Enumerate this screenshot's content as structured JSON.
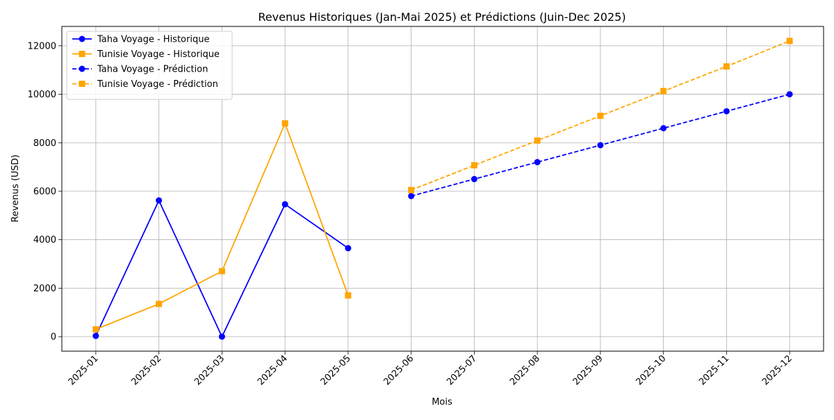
{
  "chart_data": {
    "type": "line",
    "title": "Revenus Historiques (Jan-Mai 2025) et Prédictions (Juin-Dec 2025)",
    "xlabel": "Mois",
    "ylabel": "Revenus (USD)",
    "categories": [
      "2025-01",
      "2025-02",
      "2025-03",
      "2025-04",
      "2025-05",
      "2025-06",
      "2025-07",
      "2025-08",
      "2025-09",
      "2025-10",
      "2025-11",
      "2025-12"
    ],
    "ylim": [
      -600,
      12800
    ],
    "yticks": [
      0,
      2000,
      4000,
      6000,
      8000,
      10000,
      12000
    ],
    "ytick_labels": [
      "0",
      "2000",
      "4000",
      "6000",
      "8000",
      "10000",
      "12000"
    ],
    "grid": true,
    "legend_position": "top-left",
    "series": [
      {
        "name": "Taha Voyage - Historique",
        "color": "#0000ff",
        "marker": "circle",
        "dash": "solid",
        "x": [
          "2025-01",
          "2025-02",
          "2025-03",
          "2025-04",
          "2025-05"
        ],
        "values": [
          30,
          5620,
          0,
          5460,
          3650
        ]
      },
      {
        "name": "Tunisie Voyage - Historique",
        "color": "#ffa500",
        "marker": "square",
        "dash": "solid",
        "x": [
          "2025-01",
          "2025-02",
          "2025-03",
          "2025-04",
          "2025-05"
        ],
        "values": [
          300,
          1350,
          2700,
          8800,
          1700
        ]
      },
      {
        "name": "Taha Voyage - Prédiction",
        "color": "#0000ff",
        "marker": "circle",
        "dash": "dashed",
        "x": [
          "2025-06",
          "2025-07",
          "2025-08",
          "2025-09",
          "2025-10",
          "2025-11",
          "2025-12"
        ],
        "values": [
          5800,
          6500,
          7200,
          7900,
          8600,
          9300,
          10000
        ]
      },
      {
        "name": "Tunisie Voyage - Prédiction",
        "color": "#ffa500",
        "marker": "square",
        "dash": "dashed",
        "x": [
          "2025-06",
          "2025-07",
          "2025-08",
          "2025-09",
          "2025-10",
          "2025-11",
          "2025-12"
        ],
        "values": [
          6050,
          7070,
          8090,
          9110,
          10130,
          11150,
          12200
        ]
      }
    ]
  }
}
